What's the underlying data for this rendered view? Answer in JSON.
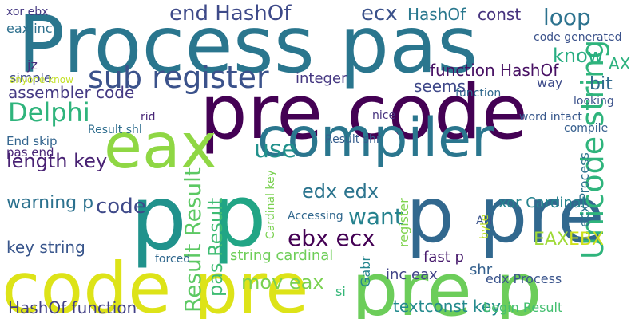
{
  "words": [
    {
      "text": "Process pas",
      "color": "#2a768e"
    },
    {
      "text": "pre code",
      "color": "#440154"
    },
    {
      "text": "compiler",
      "color": "#2a768e"
    },
    {
      "text": "code pre",
      "color": "#dde318"
    },
    {
      "text": "p pre",
      "color": "#31688e"
    },
    {
      "text": "pre p",
      "color": "#6ccd5a"
    },
    {
      "text": "p",
      "color": "#20928c"
    },
    {
      "text": "p",
      "color": "#21a585"
    },
    {
      "text": "eax",
      "color": "#8fd744"
    },
    {
      "text": "Unicode string",
      "color": "#2fb47c"
    },
    {
      "text": "sub register",
      "color": "#3b528b"
    },
    {
      "text": "Delphi",
      "color": "#2fb47c"
    },
    {
      "text": "end HashOf",
      "color": "#3e4a89"
    },
    {
      "text": "ecx",
      "color": "#3b528b"
    },
    {
      "text": "loop",
      "color": "#2c728e"
    },
    {
      "text": "HashOf",
      "color": "#2a788e"
    },
    {
      "text": "const",
      "color": "#46337e"
    },
    {
      "text": "know",
      "color": "#27ad81"
    },
    {
      "text": "assembler code",
      "color": "#443983"
    },
    {
      "text": "integer",
      "color": "#453781"
    },
    {
      "text": "function HashOf",
      "color": "#471063"
    },
    {
      "text": "seems",
      "color": "#3f4889"
    },
    {
      "text": "bit",
      "color": "#306a8e"
    },
    {
      "text": "AX",
      "color": "#2cb17e"
    },
    {
      "text": "use",
      "color": "#21918c"
    },
    {
      "text": "length key",
      "color": "#482173"
    },
    {
      "text": "code",
      "color": "#3e4989"
    },
    {
      "text": "warning p",
      "color": "#2c718e"
    },
    {
      "text": "key string",
      "color": "#39568c"
    },
    {
      "text": "ebx ecx",
      "color": "#440154"
    },
    {
      "text": "edx edx",
      "color": "#2b748e"
    },
    {
      "text": "want",
      "color": "#26828e"
    },
    {
      "text": "Result Result",
      "color": "#5cc863"
    },
    {
      "text": "pas Result",
      "color": "#3fbc73"
    },
    {
      "text": "string cardinal",
      "color": "#6ece58"
    },
    {
      "text": "mov eax",
      "color": "#7ad151"
    },
    {
      "text": "HashOf function",
      "color": "#424086"
    },
    {
      "text": "textconst key",
      "color": "#238a8d"
    },
    {
      "text": "EAX",
      "color": "#a0da39"
    },
    {
      "text": "EBX",
      "color": "#d0e11c"
    },
    {
      "text": "ecx Process",
      "color": "#2c738e"
    },
    {
      "text": "xor Cardinal",
      "color": "#25838e"
    },
    {
      "text": "Result shr",
      "color": "#365d8d"
    },
    {
      "text": "inc eax",
      "color": "#414487"
    },
    {
      "text": "edx Process",
      "color": "#3a548c"
    },
    {
      "text": "begin Result",
      "color": "#44bf70"
    },
    {
      "text": "fast p",
      "color": "#481b6d"
    },
    {
      "text": "shr",
      "color": "#34608d"
    },
    {
      "text": "simple",
      "color": "#3e4a89"
    },
    {
      "text": "jz",
      "color": "#472d7b"
    },
    {
      "text": "End skip",
      "color": "#32648e"
    },
    {
      "text": "pas end",
      "color": "#482576"
    },
    {
      "text": "eax inc",
      "color": "#2d708e"
    },
    {
      "text": "xor ebx",
      "color": "#453882"
    },
    {
      "text": "anyone know",
      "color": "#c2df23"
    },
    {
      "text": "code generated",
      "color": "#3b528b"
    },
    {
      "text": "function",
      "color": "#30698e"
    },
    {
      "text": "way",
      "color": "#3e4c8a"
    },
    {
      "text": "looking",
      "color": "#3b528b"
    },
    {
      "text": "compile",
      "color": "#355e8d"
    },
    {
      "text": "Result shl",
      "color": "#2e6d8e"
    },
    {
      "text": "rid",
      "color": "#482677"
    },
    {
      "text": "nice",
      "color": "#46327e"
    },
    {
      "text": "Accessing",
      "color": "#31688e"
    },
    {
      "text": "Cardinal key",
      "color": "#7ad151"
    },
    {
      "text": "AH",
      "color": "#3a538b"
    },
    {
      "text": "Gabr",
      "color": "#25858e"
    },
    {
      "text": "register",
      "color": "#7fd34e"
    },
    {
      "text": "byte",
      "color": "#bddf26"
    },
    {
      "text": "word intact",
      "color": "#38588c"
    },
    {
      "text": "forced",
      "color": "#31688e"
    },
    {
      "text": "si",
      "color": "#35b779"
    }
  ]
}
